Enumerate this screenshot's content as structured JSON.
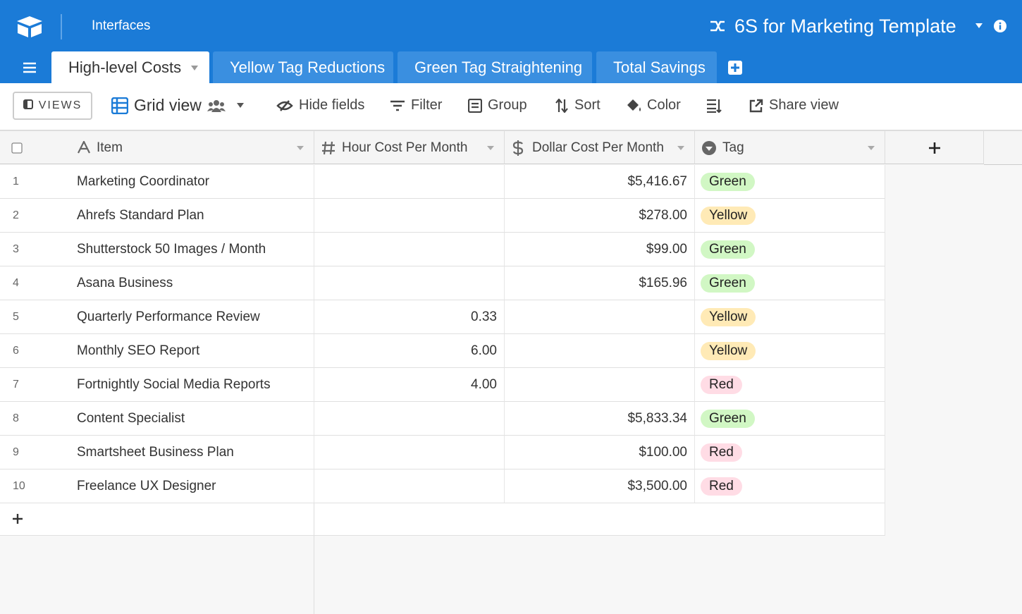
{
  "header": {
    "section": "Interfaces",
    "base_title": "6S for Marketing Template"
  },
  "tabs": [
    "High-level Costs",
    "Yellow Tag Reductions",
    "Green Tag Straightening",
    "Total Savings"
  ],
  "toolbar": {
    "views": "VIEWS",
    "view_name": "Grid view",
    "buttons": [
      "Hide fields",
      "Filter",
      "Group",
      "Sort",
      "Color",
      "Share view"
    ]
  },
  "table": {
    "columns": [
      "Item",
      "Hour Cost Per Month",
      "Dollar Cost Per Month",
      "Tag"
    ],
    "rows": [
      {
        "num": 1,
        "item": "Marketing Coordinator",
        "hours": null,
        "dollars": "$5,416.67",
        "tag": {
          "label": "Green",
          "color": "#d1f7c4"
        }
      },
      {
        "num": 2,
        "item": "Ahrefs Standard Plan",
        "hours": null,
        "dollars": "$278.00",
        "tag": {
          "label": "Yellow",
          "color": "#ffeab6"
        }
      },
      {
        "num": 3,
        "item": "Shutterstock 50 Images / Month",
        "hours": null,
        "dollars": "$99.00",
        "tag": {
          "label": "Green",
          "color": "#d1f7c4"
        }
      },
      {
        "num": 4,
        "item": "Asana Business",
        "hours": null,
        "dollars": "$165.96",
        "tag": {
          "label": "Green",
          "color": "#d1f7c4"
        }
      },
      {
        "num": 5,
        "item": "Quarterly Performance Review",
        "hours": "0.33",
        "dollars": null,
        "tag": {
          "label": "Yellow",
          "color": "#ffeab6"
        }
      },
      {
        "num": 6,
        "item": "Monthly SEO Report",
        "hours": "6.00",
        "dollars": null,
        "tag": {
          "label": "Yellow",
          "color": "#ffeab6"
        }
      },
      {
        "num": 7,
        "item": "Fortnightly Social Media Reports",
        "hours": "4.00",
        "dollars": null,
        "tag": {
          "label": "Red",
          "color": "#ffdce5"
        }
      },
      {
        "num": 8,
        "item": "Content Specialist",
        "hours": null,
        "dollars": "$5,833.34",
        "tag": {
          "label": "Green",
          "color": "#d1f7c4"
        }
      },
      {
        "num": 9,
        "item": "Smartsheet Business Plan",
        "hours": null,
        "dollars": "$100.00",
        "tag": {
          "label": "Red",
          "color": "#ffdce5"
        }
      },
      {
        "num": 10,
        "item": "Freelance UX Designer",
        "hours": null,
        "dollars": "$3,500.00",
        "tag": {
          "label": "Red",
          "color": "#ffdce5"
        }
      }
    ]
  }
}
